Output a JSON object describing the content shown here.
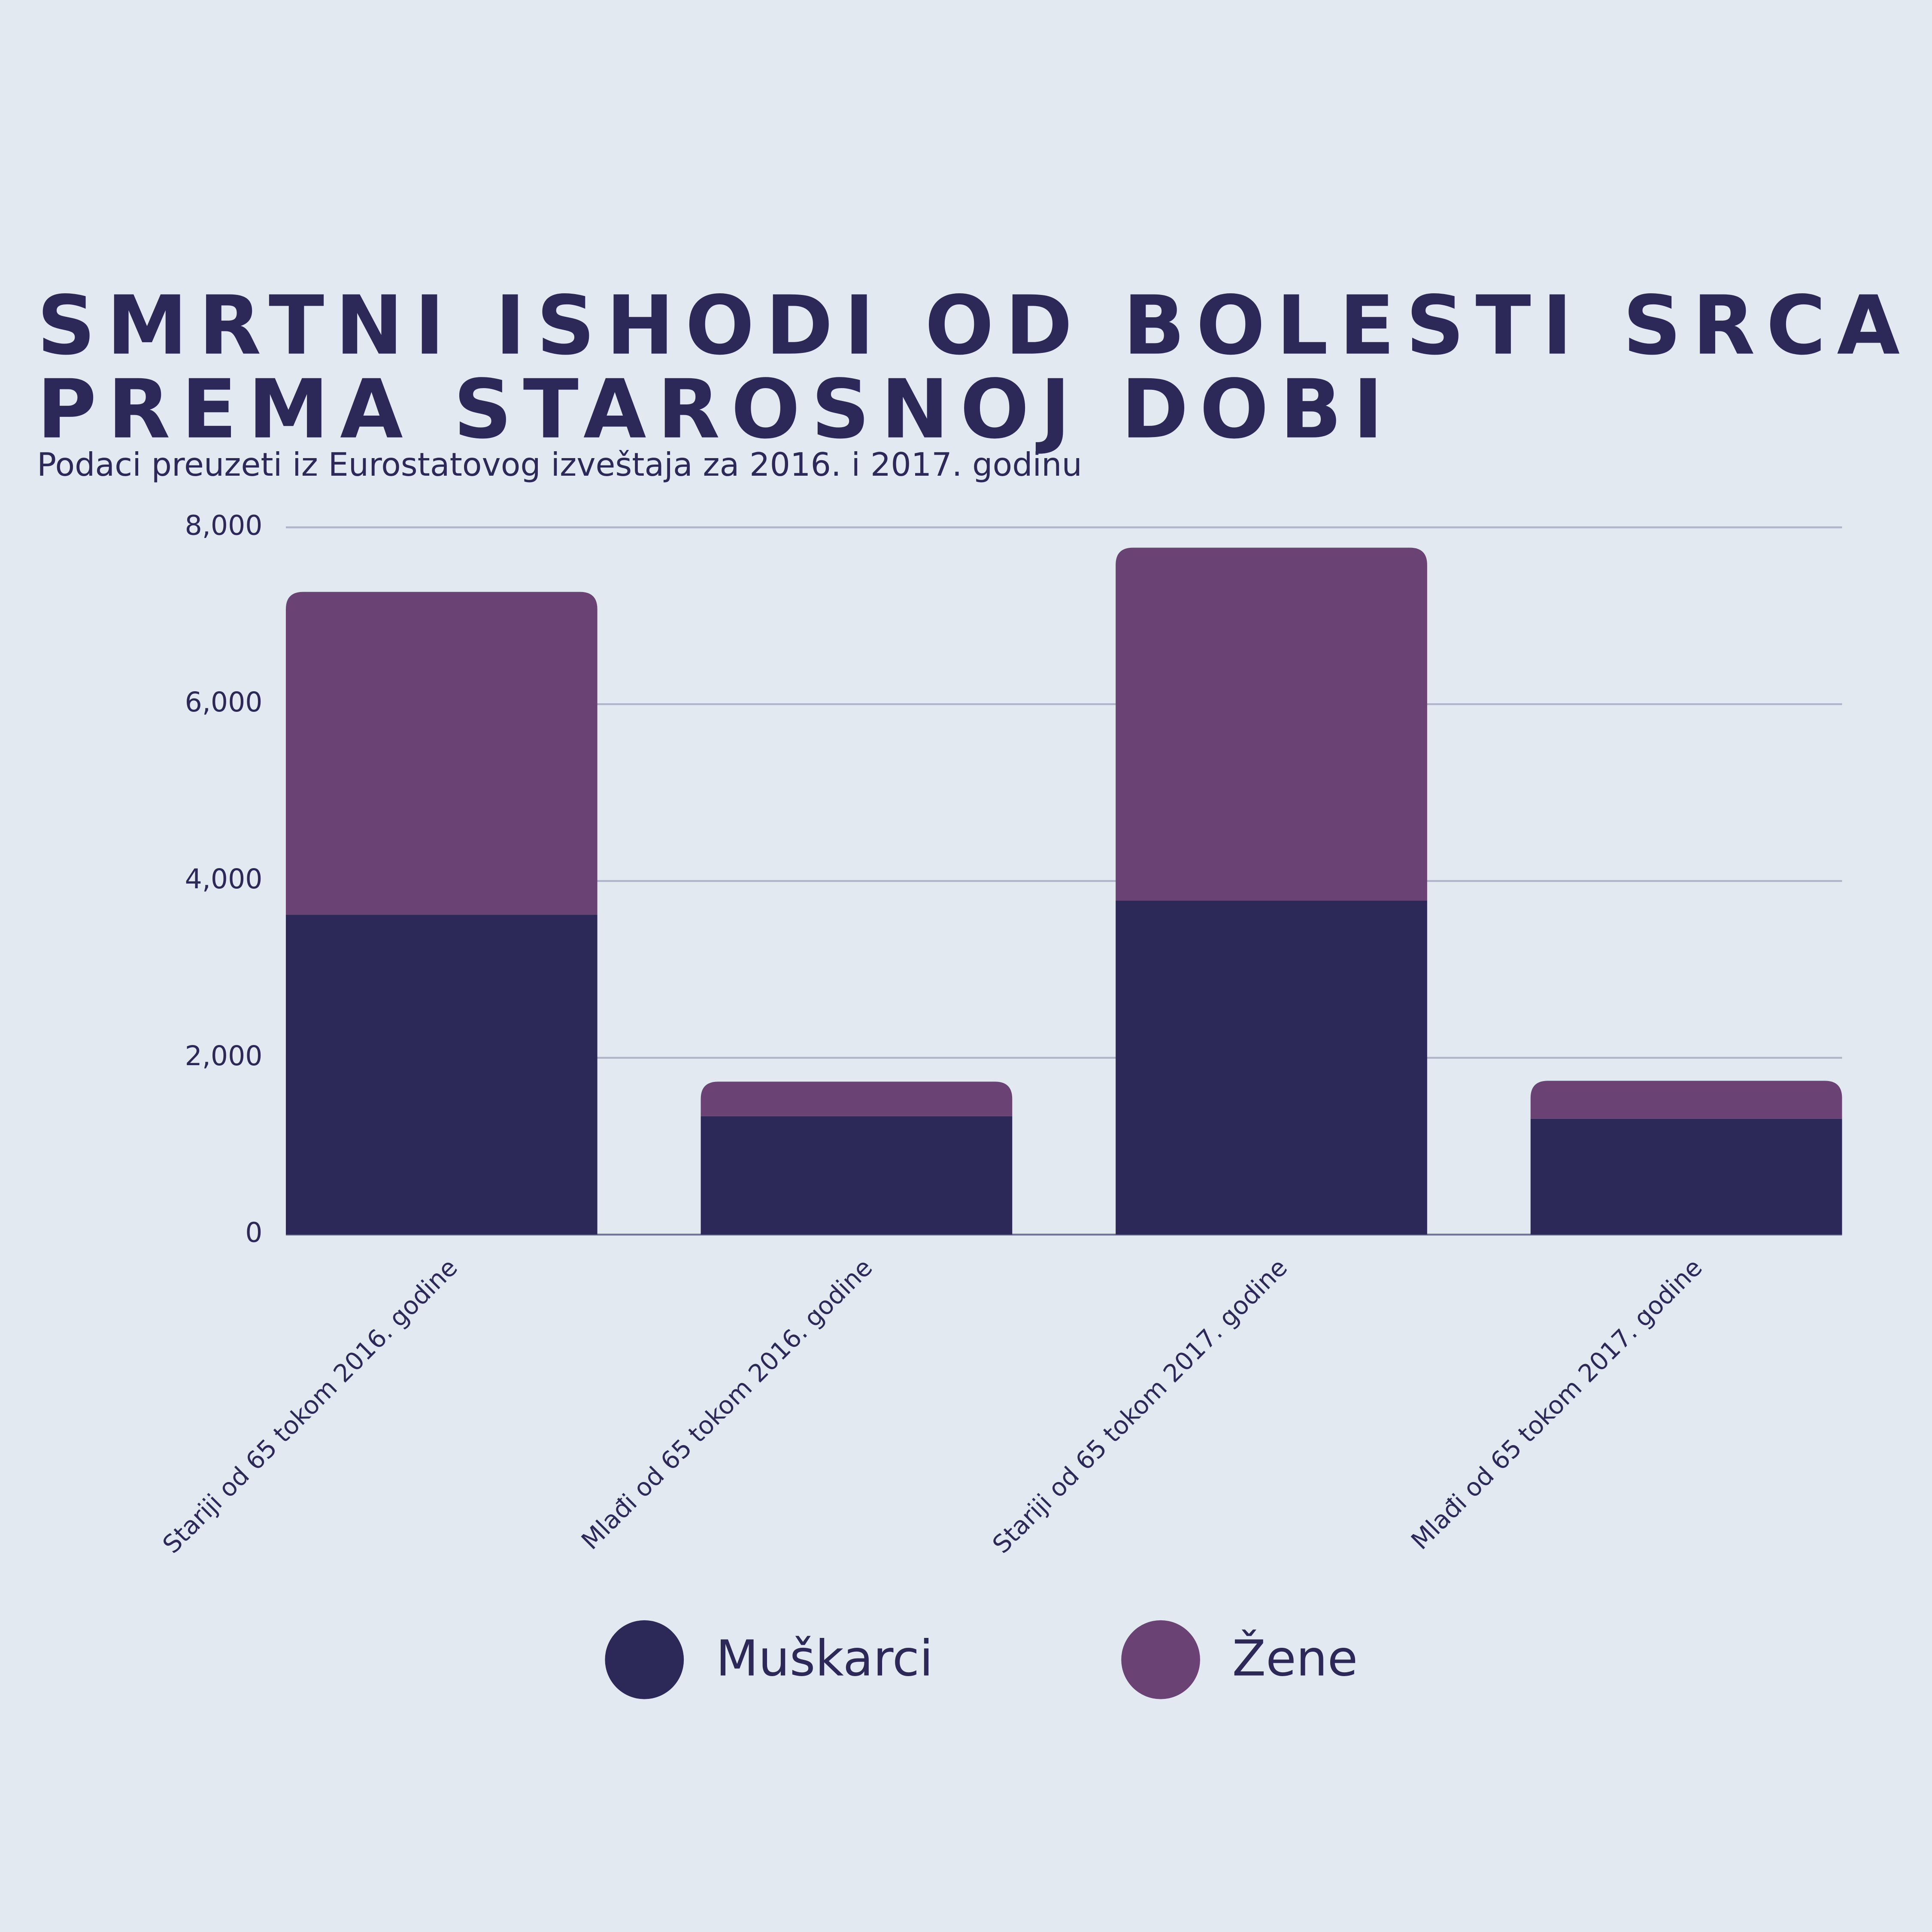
{
  "chart_data": {
    "type": "bar",
    "stacked": true,
    "title": [
      "SMRTNI ISHODI OD BOLESTI SRCA",
      "PREMA STAROSNOJ DOBI"
    ],
    "subtitle": "Podaci preuzeti iz Eurostatovog izveštaja za 2016. i 2017. godinu",
    "categories": [
      "Stariji od 65 tokom 2016. godine",
      "Mlađi od 65 tokom 2016. godine",
      "Stariji od 65 tokom 2017. godine",
      "Mlađi od 65 tokom 2017. godine"
    ],
    "series": [
      {
        "name": "Muškarci",
        "color": "#2c2858",
        "values": [
          3620,
          1340,
          3780,
          1310
        ]
      },
      {
        "name": "Žene",
        "color": "#6a4273",
        "values": [
          3650,
          390,
          3990,
          430
        ]
      }
    ],
    "ylim": [
      0,
      8000
    ],
    "yticks": [
      0,
      {
        "value": 2000,
        "label": "2,000"
      },
      {
        "value": 4000,
        "label": "4,000"
      },
      {
        "value": 6000,
        "label": "6,000"
      },
      {
        "value": 8000,
        "label": "8,000"
      }
    ],
    "grid": true
  }
}
